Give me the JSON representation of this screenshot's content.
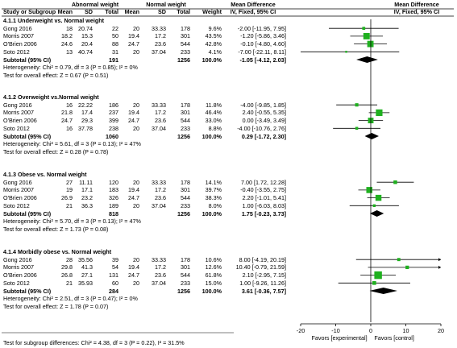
{
  "chart_data": {
    "type": "forest",
    "columns": {
      "study": "Study or Subgroup",
      "mean": "Mean",
      "sd": "SD",
      "total": "Total",
      "weight": "Weight",
      "md": "IV, Fixed, 95% CI"
    },
    "group_abnormal": "Abnormal weight",
    "group_normal": "Normal weight",
    "md_header": "Mean Difference",
    "groups": [
      {
        "title": "4.1.1 Underweight vs. Normal weight",
        "studies": [
          {
            "study": "Gong 2016",
            "m1": "18",
            "sd1": "20.74",
            "n1": "22",
            "m2": "20",
            "sd2": "33.33",
            "n2": "178",
            "weight": "9.6%",
            "ci": "-2.00 [-11.95, 7.95]",
            "md": -2.0,
            "lo": -11.95,
            "hi": 7.95
          },
          {
            "study": "Morris 2007",
            "m1": "18.2",
            "sd1": "15.3",
            "n1": "50",
            "m2": "19.4",
            "sd2": "17.2",
            "n2": "301",
            "weight": "43.5%",
            "ci": "-1.20 [-5.86, 3.46]",
            "md": -1.2,
            "lo": -5.86,
            "hi": 3.46
          },
          {
            "study": "O'Brien 2006",
            "m1": "24.6",
            "sd1": "20.4",
            "n1": "88",
            "m2": "24.7",
            "sd2": "23.6",
            "n2": "544",
            "weight": "42.8%",
            "ci": "-0.10 [-4.80, 4.60]",
            "md": -0.1,
            "lo": -4.8,
            "hi": 4.6
          },
          {
            "study": "Soto 2012",
            "m1": "13",
            "sd1": "40.74",
            "n1": "31",
            "m2": "20",
            "sd2": "37.04",
            "n2": "233",
            "weight": "4.1%",
            "ci": "-7.00 [-22.11, 8.11]",
            "md": -7.0,
            "lo": -22.11,
            "hi": 8.11
          }
        ],
        "subtotal": {
          "label": "Subtotal (95% CI)",
          "n1": "191",
          "n2": "1256",
          "weight": "100.0%",
          "ci": "-1.05 [-4.12, 2.03]",
          "md": -1.05,
          "lo": -4.12,
          "hi": 2.03
        },
        "heterogeneity": "Heterogeneity: Chi² = 0.79, df = 3 (P = 0.85); I² = 0%",
        "overall": "Test for overall effect: Z = 0.67 (P = 0.51)"
      },
      {
        "title": "4.1.2 Overweight vs.Normal weight",
        "studies": [
          {
            "study": "Gong 2016",
            "m1": "16",
            "sd1": "22.22",
            "n1": "186",
            "m2": "20",
            "sd2": "33.33",
            "n2": "178",
            "weight": "11.8%",
            "ci": "-4.00 [-9.85, 1.85]",
            "md": -4.0,
            "lo": -9.85,
            "hi": 1.85
          },
          {
            "study": "Morris 2007",
            "m1": "21.8",
            "sd1": "17.4",
            "n1": "237",
            "m2": "19.4",
            "sd2": "17.2",
            "n2": "301",
            "weight": "46.4%",
            "ci": "2.40 [-0.55, 5.35]",
            "md": 2.4,
            "lo": -0.55,
            "hi": 5.35
          },
          {
            "study": "O'Brien 2006",
            "m1": "24.7",
            "sd1": "29.3",
            "n1": "399",
            "m2": "24.7",
            "sd2": "23.6",
            "n2": "544",
            "weight": "33.0%",
            "ci": "0.00 [-3.49, 3.49]",
            "md": 0.0,
            "lo": -3.49,
            "hi": 3.49
          },
          {
            "study": "Soto 2012",
            "m1": "16",
            "sd1": "37.78",
            "n1": "238",
            "m2": "20",
            "sd2": "37.04",
            "n2": "233",
            "weight": "8.8%",
            "ci": "-4.00 [-10.76, 2.76]",
            "md": -4.0,
            "lo": -10.76,
            "hi": 2.76
          }
        ],
        "subtotal": {
          "label": "Subtotal (95% CI)",
          "n1": "1060",
          "n2": "1256",
          "weight": "100.0%",
          "ci": "0.29 [-1.72, 2.30]",
          "md": 0.29,
          "lo": -1.72,
          "hi": 2.3
        },
        "heterogeneity": "Heterogeneity: Chi² = 5.61, df = 3 (P = 0.13); I² = 47%",
        "overall": "Test for overall effect: Z = 0.28 (P = 0.78)"
      },
      {
        "title": "4.1.3 Obese vs. Normal weight",
        "studies": [
          {
            "study": "Gong 2016",
            "m1": "27",
            "sd1": "11.11",
            "n1": "120",
            "m2": "20",
            "sd2": "33.33",
            "n2": "178",
            "weight": "14.1%",
            "ci": "7.00 [1.72, 12.28]",
            "md": 7.0,
            "lo": 1.72,
            "hi": 12.28
          },
          {
            "study": "Morris 2007",
            "m1": "19",
            "sd1": "17.1",
            "n1": "183",
            "m2": "19.4",
            "sd2": "17.2",
            "n2": "301",
            "weight": "39.7%",
            "ci": "-0.40 [-3.55, 2.75]",
            "md": -0.4,
            "lo": -3.55,
            "hi": 2.75
          },
          {
            "study": "O'Brien 2006",
            "m1": "26.9",
            "sd1": "23.2",
            "n1": "326",
            "m2": "24.7",
            "sd2": "23.6",
            "n2": "544",
            "weight": "38.3%",
            "ci": "2.20 [-1.01, 5.41]",
            "md": 2.2,
            "lo": -1.01,
            "hi": 5.41
          },
          {
            "study": "Soto 2012",
            "m1": "21",
            "sd1": "36.3",
            "n1": "189",
            "m2": "20",
            "sd2": "37.04",
            "n2": "233",
            "weight": "8.0%",
            "ci": "1.00 [-6.03, 8.03]",
            "md": 1.0,
            "lo": -6.03,
            "hi": 8.03
          }
        ],
        "subtotal": {
          "label": "Subtotal (95% CI)",
          "n1": "818",
          "n2": "1256",
          "weight": "100.0%",
          "ci": "1.75 [-0.23, 3.73]",
          "md": 1.75,
          "lo": -0.23,
          "hi": 3.73
        },
        "heterogeneity": "Heterogeneity: Chi² = 5.70, df = 3 (P = 0.13); I² = 47%",
        "overall": "Test for overall effect: Z = 1.73 (P = 0.08)"
      },
      {
        "title": "4.1.4 Morbidly obese vs. Normal weight",
        "studies": [
          {
            "study": "Gong 2016",
            "m1": "28",
            "sd1": "35.56",
            "n1": "39",
            "m2": "20",
            "sd2": "33.33",
            "n2": "178",
            "weight": "10.6%",
            "ci": "8.00 [-4.19, 20.19]",
            "md": 8.0,
            "lo": -4.19,
            "hi": 20.19
          },
          {
            "study": "Morris 2007",
            "m1": "29.8",
            "sd1": "41.3",
            "n1": "54",
            "m2": "19.4",
            "sd2": "17.2",
            "n2": "301",
            "weight": "12.6%",
            "ci": "10.40 [-0.79, 21.59]",
            "md": 10.4,
            "lo": -0.79,
            "hi": 21.59
          },
          {
            "study": "O'Brien 2006",
            "m1": "26.8",
            "sd1": "27.1",
            "n1": "131",
            "m2": "24.7",
            "sd2": "23.6",
            "n2": "544",
            "weight": "61.8%",
            "ci": "2.10 [-2.95, 7.15]",
            "md": 2.1,
            "lo": -2.95,
            "hi": 7.15
          },
          {
            "study": "Soto 2012",
            "m1": "21",
            "sd1": "35.93",
            "n1": "60",
            "m2": "20",
            "sd2": "37.04",
            "n2": "233",
            "weight": "15.0%",
            "ci": "1.00 [-9.26, 11.26]",
            "md": 1.0,
            "lo": -9.26,
            "hi": 11.26
          }
        ],
        "subtotal": {
          "label": "Subtotal (95% CI)",
          "n1": "284",
          "n2": "1256",
          "weight": "100.0%",
          "ci": "3.61 [-0.36, 7.57]",
          "md": 3.61,
          "lo": -0.36,
          "hi": 7.57
        },
        "heterogeneity": "Heterogeneity: Chi² = 2.51, df = 3 (P = 0.47); I² = 0%",
        "overall": "Test for overall effect: Z = 1.78 (P = 0.07)"
      }
    ],
    "axis": {
      "xlim": [
        -20,
        20
      ],
      "ticks": [
        -20,
        -10,
        0,
        10,
        20
      ],
      "left_label": "Favors [experimental]",
      "right_label": "Favors [control]"
    },
    "subgroup_test": "Test for subgroup differences: Chi² = 4.38, df = 3 (P = 0.22), I² = 31.5%",
    "colors": {
      "square": "#1fb01f",
      "diamond": "#000000",
      "line": "#000000"
    }
  }
}
